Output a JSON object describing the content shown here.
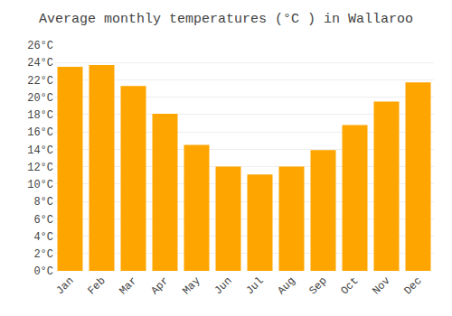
{
  "chart_data": {
    "type": "bar",
    "title": "Average monthly temperatures (°C ) in Wallaroo",
    "categories": [
      "Jan",
      "Feb",
      "Mar",
      "Apr",
      "May",
      "Jun",
      "Jul",
      "Aug",
      "Sep",
      "Oct",
      "Nov",
      "Dec"
    ],
    "values": [
      23.5,
      23.7,
      21.3,
      18.1,
      14.5,
      12.0,
      11.1,
      12.0,
      13.9,
      16.8,
      19.5,
      21.7
    ],
    "color": "#FFA500",
    "ylim": [
      0,
      26
    ],
    "yticks": [
      {
        "value": 0,
        "label": "0°C"
      },
      {
        "value": 2,
        "label": "2°C"
      },
      {
        "value": 4,
        "label": "4°C"
      },
      {
        "value": 6,
        "label": "6°C"
      },
      {
        "value": 8,
        "label": "8°C"
      },
      {
        "value": 10,
        "label": "10°C"
      },
      {
        "value": 12,
        "label": "12°C"
      },
      {
        "value": 14,
        "label": "14°C"
      },
      {
        "value": 16,
        "label": "16°C"
      },
      {
        "value": 18,
        "label": "18°C"
      },
      {
        "value": 20,
        "label": "20°C"
      },
      {
        "value": 22,
        "label": "22°C"
      },
      {
        "value": 24,
        "label": "24°C"
      },
      {
        "value": 26,
        "label": "26°C"
      }
    ],
    "grid": true
  }
}
